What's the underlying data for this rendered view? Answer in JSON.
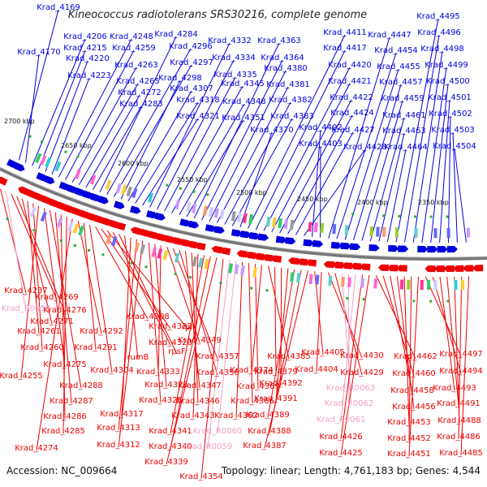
{
  "title": "Kineococcus radiotolerans SRS30216, complete genome",
  "accession": "Accession: NC_009664",
  "summary": "Topology: linear; Length: 4,761,183 bp; Genes: 4,544",
  "colors": {
    "forward": "#0000dd",
    "reverse": "#ee0000",
    "rna": "#f2a0c8",
    "backbone": "#777777"
  },
  "kbp_ticks": [
    "2700 kbp",
    "2650 kbp",
    "2600 kbp",
    "2550 kbp",
    "2500 kbp",
    "2450 kbp",
    "2400 kbp",
    "2350 kbp"
  ],
  "blue_labels": [
    "Krad_4169",
    "Krad_4170",
    "Krad_4206",
    "Krad_4215",
    "Krad_4220",
    "Krad_4223",
    "Krad_4248",
    "Krad_4259",
    "Krad_4263",
    "Krad_4265",
    "Krad_4272",
    "Krad_4283",
    "Krad_4284",
    "Krad_4296",
    "Krad_4297",
    "Krad_4298",
    "Krad_4307",
    "Krad_4318",
    "Krad_4321",
    "Krad_4332",
    "Krad_4334",
    "Krad_4335",
    "Krad_4345",
    "Krad_4348",
    "Krad_4351",
    "Krad_4363",
    "Krad_4364",
    "Krad_4380",
    "Krad_4381",
    "Krad_4382",
    "Krad_4383",
    "Krad_4370",
    "Krad_4411",
    "Krad_4417",
    "Krad_4420",
    "Krad_4421",
    "Krad_4422",
    "Krad_4424",
    "Krad_4427",
    "Krad_4428",
    "Krad_4402",
    "Krad_4403",
    "Krad_4447",
    "Krad_4454",
    "Krad_4455",
    "Krad_4457",
    "Krad_4459",
    "Krad_4461",
    "Krad_4463",
    "Krad_4464",
    "Krad_4495",
    "Krad_4496",
    "Krad_4498",
    "Krad_4499",
    "Krad_4500",
    "Krad_4501",
    "Krad_4502",
    "Krad_4503",
    "Krad_4504"
  ],
  "red_labels": [
    "Krad_4237",
    "Krad_R0057",
    "Krad_4269",
    "Krad_4276",
    "Krad_4271",
    "Krad_4261",
    "Krad_4260",
    "Krad_4255",
    "Krad_4275",
    "Krad_4288",
    "Krad_4287",
    "Krad_4286",
    "Krad_4285",
    "Krad_4274",
    "Krad_4292",
    "Krad_4291",
    "Krad_4304",
    "Krad_4308",
    "Krad_4322",
    "rplI",
    "Krad_4320",
    "rpsF",
    "rumB",
    "Krad_4317",
    "Krad_4313",
    "Krad_4312",
    "Krad_4325",
    "Krad_4326",
    "Krad_4333",
    "Krad_4349",
    "Krad_4357",
    "Krad_4356",
    "Krad_4347",
    "Krad_4346",
    "Krad_4343",
    "Krad_4341",
    "Krad_4340",
    "Krad_4339",
    "Krad_4354",
    "Krad_R0059",
    "Krad_R0060",
    "Krad_4362",
    "Krad_4366",
    "Krad_4369",
    "Krad_4374",
    "Krad_4385",
    "Krad_4379",
    "Krad_4392",
    "Krad_4391",
    "Krad_4389",
    "Krad_4388",
    "Krad_4387",
    "Krad_4405",
    "Krad_4404",
    "Krad_4430",
    "Krad_4429",
    "Krad_R0063",
    "Krad_R0062",
    "Krad_R0061",
    "Krad_4426",
    "Krad_4425",
    "Krad_4462",
    "Krad_4460",
    "Krad_4458",
    "Krad_4456",
    "Krad_4453",
    "Krad_4452",
    "Krad_4451",
    "Krad_4497",
    "Krad_4494",
    "Krad_4493",
    "Krad_4491",
    "Krad_4488",
    "Krad_4486",
    "Krad_4485"
  ]
}
